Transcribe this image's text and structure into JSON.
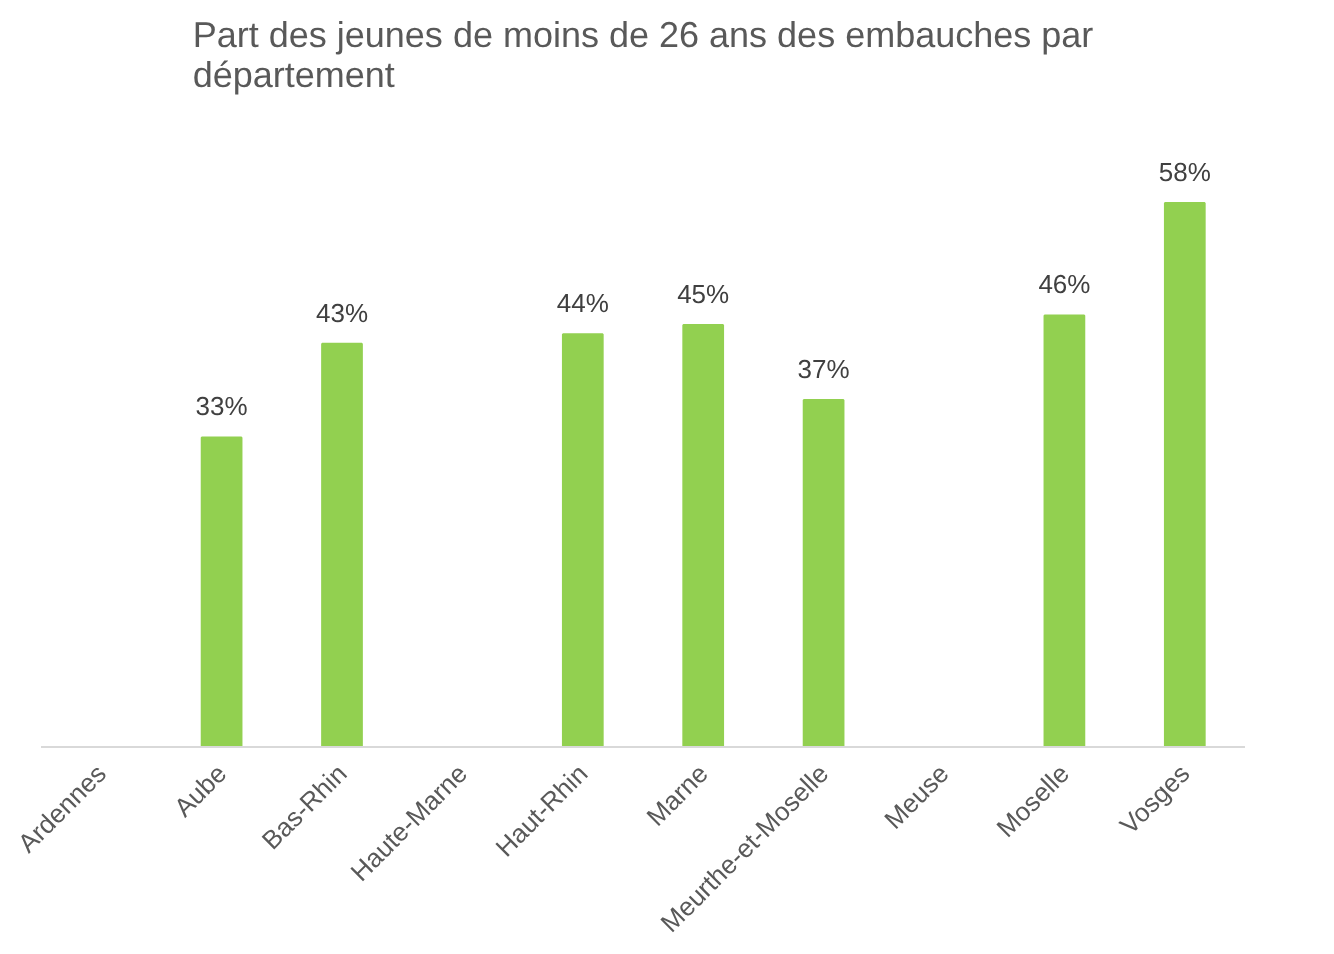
{
  "chart_data": {
    "type": "bar",
    "title": "Part des jeunes de moins de 26 ans des embauches par département",
    "categories": [
      "Ardennes",
      "Aube",
      "Bas-Rhin",
      "Haute-Marne",
      "Haut-Rhin",
      "Marne",
      "Meurthe-et-Moselle",
      "Meuse",
      "Moselle",
      "Vosges"
    ],
    "values": [
      null,
      33,
      43,
      null,
      44,
      45,
      37,
      null,
      46,
      58
    ],
    "value_labels": [
      null,
      "33%",
      "43%",
      null,
      "44%",
      "45%",
      "37%",
      null,
      "46%",
      "58%"
    ],
    "color": "#92d050",
    "grid": false
  }
}
